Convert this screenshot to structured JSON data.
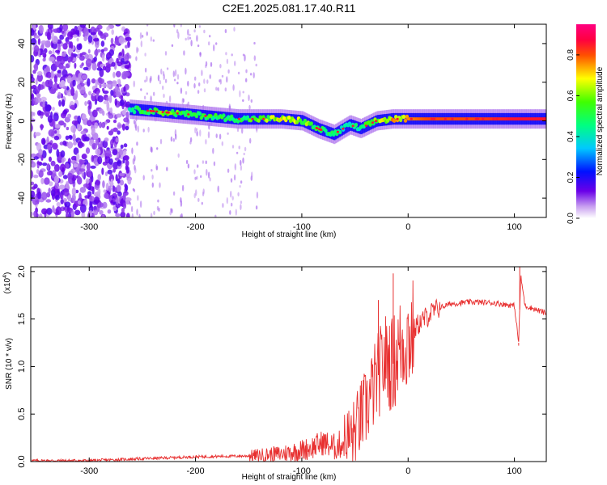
{
  "title": "C2E1.2025.081.17.40.R11",
  "chart_data": [
    {
      "type": "heatmap",
      "xlabel": "Height of straight line (km)",
      "ylabel": "Frequency (Hz)",
      "xlim": [
        -355,
        130
      ],
      "ylim": [
        -50,
        50
      ],
      "xticks": [
        -300,
        -200,
        -100,
        0,
        100
      ],
      "yticks": [
        -40,
        -20,
        0,
        20,
        40
      ],
      "colorbar": {
        "label": "Normalized spectral amplitude",
        "range": [
          0,
          0.95
        ],
        "ticks": [
          0,
          0.2,
          0.4,
          0.6,
          0.8
        ],
        "colormap": "rainbow (white-purple-blue-cyan-green-yellow-red-magenta)"
      },
      "noise_region_x": [
        -355,
        -262
      ],
      "ridge": {
        "x": [
          -262,
          -240,
          -220,
          -200,
          -180,
          -160,
          -140,
          -120,
          -100,
          -85,
          -70,
          -55,
          -45,
          -30,
          -15,
          0,
          20,
          60,
          100,
          130
        ],
        "freq": [
          6,
          5,
          4,
          3,
          2,
          1,
          1,
          1,
          0,
          -4,
          -7,
          -2,
          -4,
          0,
          1,
          1,
          1,
          1,
          1,
          1
        ],
        "amplitude": [
          0.5,
          0.6,
          0.6,
          0.55,
          0.55,
          0.55,
          0.6,
          0.7,
          0.65,
          0.55,
          0.5,
          0.45,
          0.5,
          0.65,
          0.75,
          0.8,
          0.85,
          0.85,
          0.9,
          0.9
        ]
      }
    },
    {
      "type": "line",
      "xlabel": "Height of straight line (km)",
      "ylabel": "SNR (10 * v/v)",
      "y_multiplier": "(x10",
      "y_multiplier_exp": "4",
      "xlim": [
        -355,
        130
      ],
      "ylim": [
        0,
        2.05
      ],
      "xticks": [
        -300,
        -200,
        -100,
        0,
        100
      ],
      "yticks": [
        0.0,
        0.5,
        1.0,
        1.5,
        2.0
      ],
      "ytick_labels": [
        "0.0",
        "0.5",
        "1.0",
        "1.5",
        "2.0"
      ],
      "series": [
        {
          "color": "#e83030",
          "x": [
            -355,
            -300,
            -250,
            -200,
            -150,
            -120,
            -100,
            -90,
            -80,
            -70,
            -60,
            -50,
            -45,
            -40,
            -35,
            -30,
            -25,
            -20,
            -15,
            -10,
            -5,
            0,
            10,
            20,
            30,
            40,
            60,
            80,
            100,
            104,
            106,
            110,
            120,
            130
          ],
          "y": [
            0.01,
            0.01,
            0.03,
            0.05,
            0.06,
            0.08,
            0.12,
            0.15,
            0.2,
            0.15,
            0.2,
            0.3,
            0.45,
            0.55,
            0.7,
            0.85,
            1.0,
            1.1,
            1.0,
            1.15,
            1.25,
            1.3,
            1.45,
            1.55,
            1.62,
            1.66,
            1.68,
            1.67,
            1.64,
            1.25,
            1.95,
            1.64,
            1.6,
            1.56
          ],
          "spikes": [
            [
              -28,
              1.7
            ],
            [
              -14,
              1.98
            ],
            [
              105,
              2.05
            ],
            [
              104,
              1.22
            ]
          ]
        }
      ]
    }
  ]
}
